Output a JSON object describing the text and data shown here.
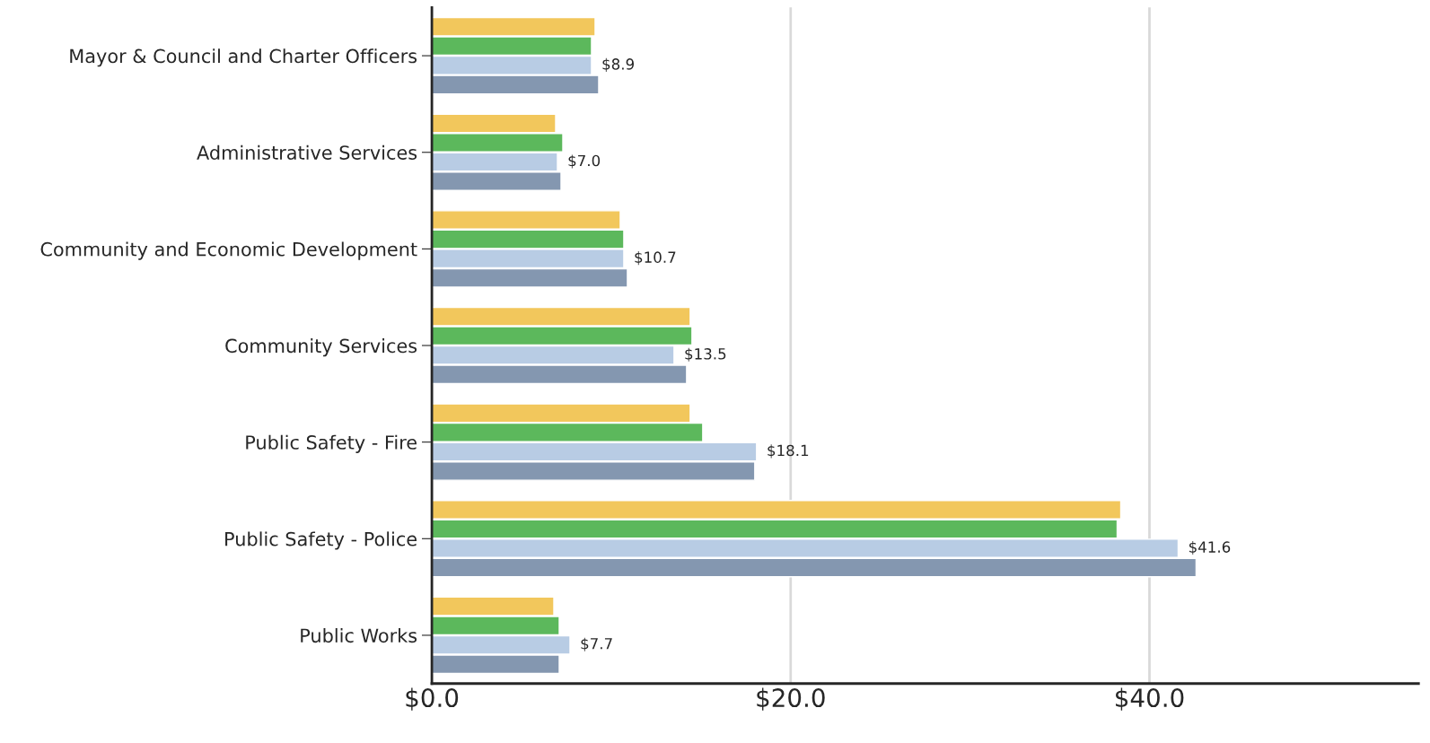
{
  "chart_data": {
    "type": "bar",
    "orientation": "horizontal",
    "categories": [
      "Mayor & Council and Charter Officers",
      "Administrative Services",
      "Community and Economic Development",
      "Community Services",
      "Public Safety - Fire",
      "Public Safety - Police",
      "Public Works"
    ],
    "series": [
      {
        "color": "#f2c75c",
        "values": [
          9.1,
          6.9,
          10.5,
          14.4,
          14.4,
          38.4,
          6.8
        ]
      },
      {
        "color": "#5cb85c",
        "values": [
          8.9,
          7.3,
          10.7,
          14.5,
          15.1,
          38.2,
          7.1
        ]
      },
      {
        "color": "#b8cce4",
        "values": [
          8.9,
          7.0,
          10.7,
          13.5,
          18.1,
          41.6,
          7.7
        ],
        "value_labels": [
          "$8.9",
          "$7.0",
          "$10.7",
          "$13.5",
          "$18.1",
          "$41.6",
          "$7.7"
        ]
      },
      {
        "color": "#8497b0",
        "values": [
          9.3,
          7.2,
          10.9,
          14.2,
          18.0,
          42.6,
          7.1
        ]
      }
    ],
    "xlim": [
      0,
      55
    ],
    "xticks": [
      {
        "value": 0,
        "label": "$0.0"
      },
      {
        "value": 20,
        "label": "$20.0"
      },
      {
        "value": 40,
        "label": "$40.0"
      }
    ],
    "grid": "x",
    "legend": false
  }
}
